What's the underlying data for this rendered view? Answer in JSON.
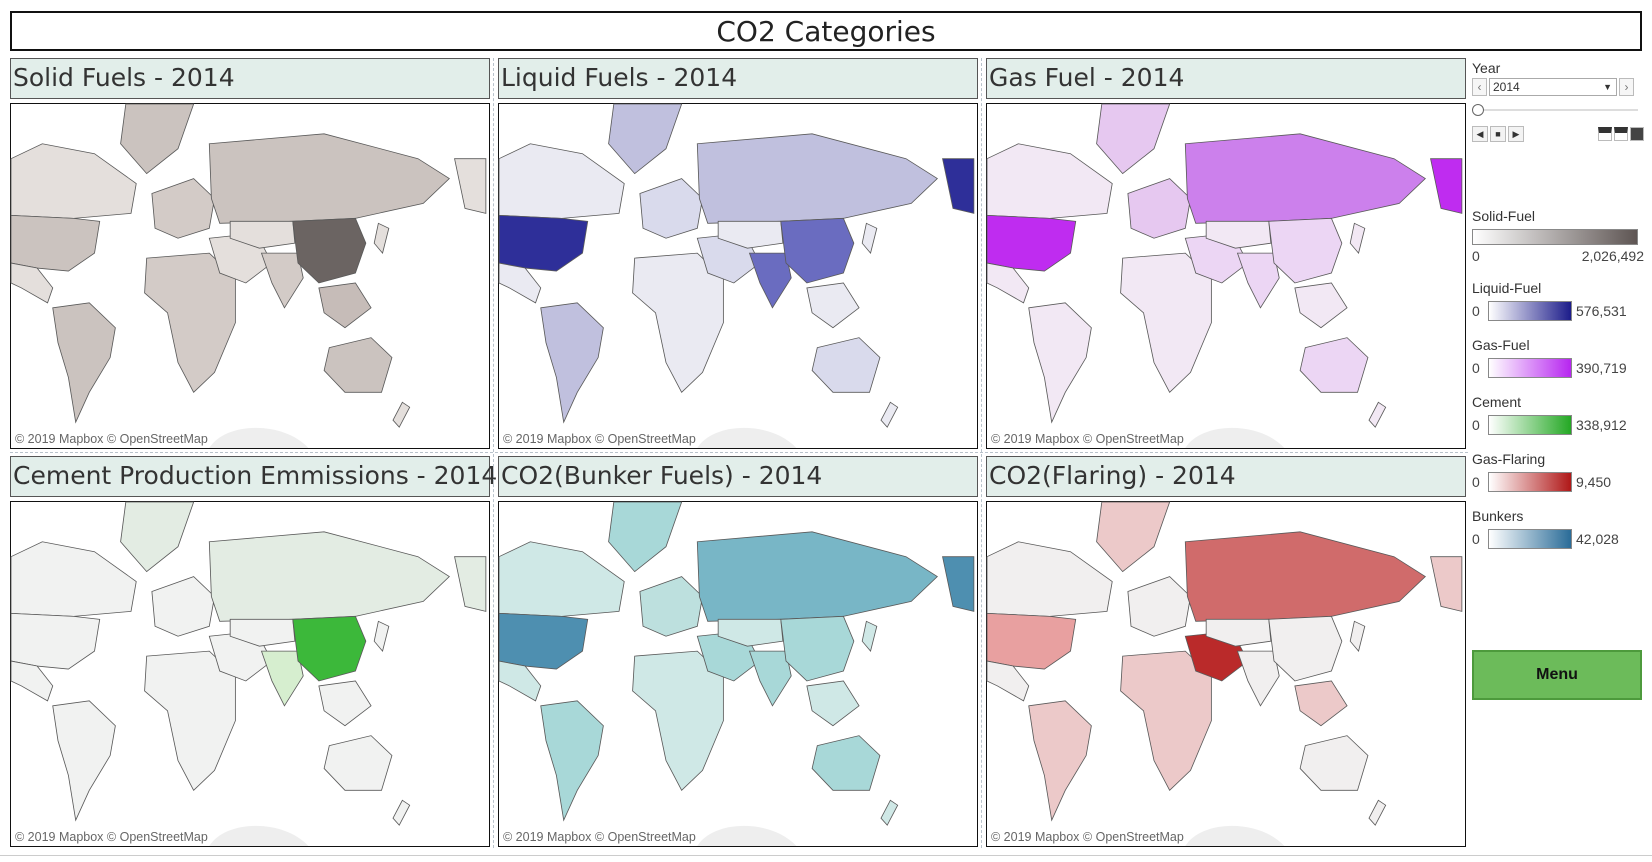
{
  "title": "CO2 Categories",
  "panels": [
    {
      "title": "Solid Fuels - 2014",
      "credit": "© 2019 Mapbox © OpenStreetMap",
      "base": "#e4dfdc",
      "mid": "#cbc3bf",
      "accent": "#6b6462",
      "accent2": "#c6bcb8",
      "accent3": "#d3cbc7"
    },
    {
      "title": "Liquid Fuels - 2014",
      "credit": "© 2019 Mapbox © OpenStreetMap",
      "base": "#eaeaf2",
      "mid": "#c0c0de",
      "accent": "#6a6cc0",
      "accent2": "#2e2f99",
      "accent3": "#d9daec"
    },
    {
      "title": "Gas Fuel - 2014",
      "credit": "© 2019 Mapbox © OpenStreetMap",
      "base": "#f2e8f4",
      "mid": "#e6c8f0",
      "accent": "#cc80ec",
      "accent2": "#bf2cf0",
      "accent3": "#ecd6f4"
    },
    {
      "title": "Cement Production Emmissions - 2014",
      "credit": "© 2019 Mapbox © OpenStreetMap",
      "base": "#f1f2f1",
      "mid": "#e3ece3",
      "accent": "#3cb83a",
      "accent2": "#d6eecf",
      "accent3": "#e8f0e8"
    },
    {
      "title": "CO2(Bunker Fuels) - 2014",
      "credit": "© 2019 Mapbox © OpenStreetMap",
      "base": "#cfe8e6",
      "mid": "#a8d8d8",
      "accent": "#78b6c6",
      "accent2": "#4e8fb0",
      "accent3": "#bde0de"
    },
    {
      "title": "CO2(Flaring) - 2014",
      "credit": "© 2019 Mapbox © OpenStreetMap",
      "base": "#f1efef",
      "mid": "#ecc9c9",
      "accent": "#d06b6b",
      "accent2": "#ba2a2a",
      "accent3": "#e8a0a0"
    }
  ],
  "controls": {
    "year_label": "Year",
    "year_value": "2014",
    "prev_icon": "chevron-left-icon",
    "next_icon": "chevron-right-icon"
  },
  "legends": [
    {
      "name": "Solid-Fuel",
      "min": "0",
      "max": "2,026,492",
      "from": "#ffffff",
      "to": "#5e5553",
      "wide": true
    },
    {
      "name": "Liquid-Fuel",
      "min": "0",
      "max": "576,531",
      "from": "#ffffff",
      "to": "#1c1c8a"
    },
    {
      "name": "Gas-Fuel",
      "min": "0",
      "max": "390,719",
      "from": "#ffffff",
      "to": "#b726f0"
    },
    {
      "name": "Cement",
      "min": "0",
      "max": "338,912",
      "from": "#ffffff",
      "to": "#24a824"
    },
    {
      "name": "Gas-Flaring",
      "min": "0",
      "max": "9,450",
      "from": "#ffffff",
      "to": "#b01818"
    },
    {
      "name": "Bunkers",
      "min": "0",
      "max": "42,028",
      "from": "#ffffff",
      "to": "#2a6c98"
    }
  ],
  "menu_label": "Menu"
}
